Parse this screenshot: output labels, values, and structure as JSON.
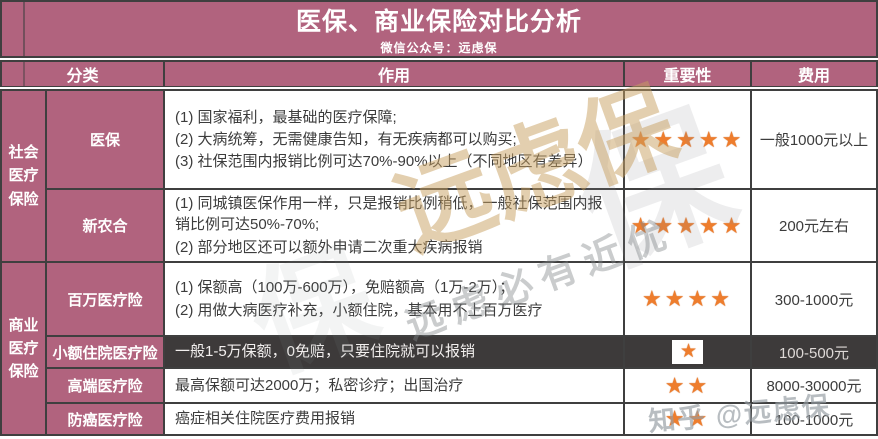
{
  "title": "医保、商业保险对比分析",
  "subtitle": "微信公众号：远虑保",
  "columns": {
    "category": "分类",
    "function": "作用",
    "importance": "重要性",
    "cost": "费用"
  },
  "groups": [
    {
      "name": "社会医疗保险"
    },
    {
      "name": "商业医疗保险"
    }
  ],
  "rows": [
    {
      "group": "社会医疗保险",
      "name": "医保",
      "items": [
        "(1) 国家福利，最基础的医疗保障;",
        "(2) 大病统筹，无需健康告知，有无疾病都可以购买;",
        "(3) 社保范围内报销比例可达70%-90%以上（不同地区有差异）"
      ],
      "stars": 5,
      "stars_display": "★★★★★",
      "cost": "一般1000元以上"
    },
    {
      "group": "社会医疗保险",
      "name": "新农合",
      "items": [
        "(1) 同城镇医保作用一样，只是报销比例稍低，一般社保范围内报销比例可达50%-70%;",
        "(2) 部分地区还可以额外申请二次重大疾病报销"
      ],
      "stars": 5,
      "stars_display": "★★★★★",
      "cost": "200元左右"
    },
    {
      "group": "商业医疗保险",
      "name": "百万医疗险",
      "items": [
        "(1) 保额高（100万-600万），免赔额高（1万-2万）；",
        "(2) 用做大病医疗补充，小额住院，基本用不上百万医疗"
      ],
      "stars": 4,
      "stars_display": "★★★★",
      "cost": "300-1000元"
    },
    {
      "group": "商业医疗保险",
      "name": "小额住院医疗险",
      "items": [
        "一般1-5万保额，0免赔，只要住院就可以报销"
      ],
      "stars": 1,
      "stars_display": "★",
      "cost": "100-500元",
      "highlighted_dark": true
    },
    {
      "group": "商业医疗保险",
      "name": "高端医疗险",
      "items": [
        "最高保额可达2000万；私密诊疗；出国治疗"
      ],
      "stars": 2,
      "stars_display": "★★",
      "cost": "8000-30000元"
    },
    {
      "group": "商业医疗保险",
      "name": "防癌医疗险",
      "items": [
        "癌症相关住院医疗费用报销"
      ],
      "stars": 2,
      "stars_display": "★★",
      "cost": "100-1000元"
    }
  ],
  "watermarks": {
    "brand_large": "远虑保",
    "slogan": "远虑必有近优",
    "ghost_char": "保",
    "zhihu": "知乎 @远虑保"
  },
  "colors": {
    "accent_pink": "#b1637e",
    "border": "#3f3f3f",
    "dark_row": "#3d3a3a",
    "star_orange": "#ee7d2d",
    "watermark_tan": "#c7a05f"
  }
}
